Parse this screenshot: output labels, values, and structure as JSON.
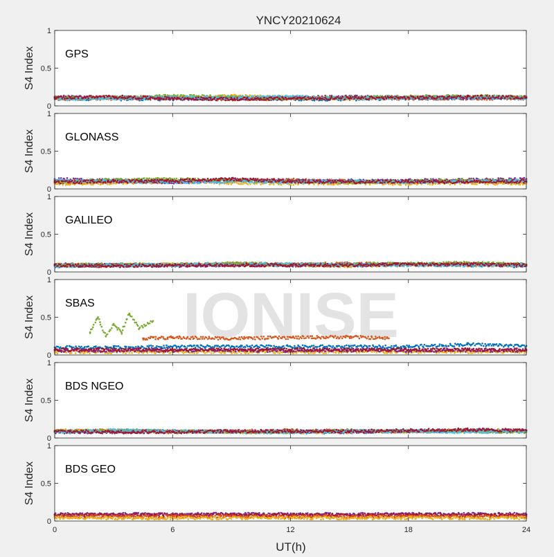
{
  "chart_data": {
    "type": "scatter",
    "title": "YNCY20210624",
    "xlabel": "UT(h)",
    "ylabel": "S4 Index",
    "xlim": [
      0,
      24
    ],
    "ylim": [
      0,
      1
    ],
    "x_ticks": [
      0,
      6,
      12,
      18,
      24
    ],
    "y_ticks": [
      0,
      0.5,
      1
    ],
    "y_tick_labels": [
      "0",
      "0.5",
      "1"
    ],
    "grid": false,
    "watermark": "IONISE",
    "watermark_panel": "SBAS",
    "series_colors": [
      "#0072bd",
      "#d95319",
      "#edb120",
      "#7e2f8e",
      "#77ac30",
      "#4dbeee",
      "#a2142f"
    ],
    "panels": [
      {
        "label": "GPS",
        "series": [
          {
            "color": "#0072bd",
            "x": [
              0,
              3,
              6,
              9,
              12,
              15,
              18,
              21,
              24
            ],
            "y": [
              0.1,
              0.09,
              0.09,
              0.1,
              0.09,
              0.09,
              0.1,
              0.1,
              0.11
            ]
          },
          {
            "color": "#d95319",
            "x": [
              0,
              3,
              6,
              9,
              12,
              15,
              18,
              21,
              24
            ],
            "y": [
              0.09,
              0.1,
              0.1,
              0.09,
              0.1,
              0.11,
              0.1,
              0.1,
              0.1
            ]
          },
          {
            "color": "#edb120",
            "x": [
              0,
              3,
              6,
              9,
              12,
              15,
              18,
              21,
              24
            ],
            "y": [
              0.11,
              0.1,
              0.12,
              0.13,
              0.11,
              0.1,
              0.11,
              0.12,
              0.11
            ]
          },
          {
            "color": "#7e2f8e",
            "x": [
              0,
              3,
              6,
              9,
              12,
              15,
              18,
              21,
              24
            ],
            "y": [
              0.12,
              0.11,
              0.1,
              0.1,
              0.11,
              0.12,
              0.11,
              0.11,
              0.12
            ]
          },
          {
            "color": "#77ac30",
            "x": [
              0,
              3,
              6,
              9,
              12,
              15,
              18,
              21,
              24
            ],
            "y": [
              0.1,
              0.11,
              0.13,
              0.12,
              0.1,
              0.11,
              0.12,
              0.13,
              0.12
            ]
          },
          {
            "color": "#4dbeee",
            "x": [
              0,
              3,
              6,
              9,
              12,
              15,
              18,
              21,
              24
            ],
            "y": [
              0.09,
              0.1,
              0.11,
              0.11,
              0.12,
              0.1,
              0.11,
              0.11,
              0.1
            ]
          },
          {
            "color": "#a2142f",
            "x": [
              0,
              3,
              6,
              9,
              12,
              15,
              18,
              21,
              24
            ],
            "y": [
              0.11,
              0.12,
              0.1,
              0.09,
              0.1,
              0.1,
              0.11,
              0.12,
              0.11
            ]
          }
        ]
      },
      {
        "label": "GLONASS",
        "series": [
          {
            "color": "#0072bd",
            "x": [
              0,
              3,
              6,
              9,
              12,
              15,
              18,
              21,
              24
            ],
            "y": [
              0.09,
              0.1,
              0.09,
              0.1,
              0.1,
              0.11,
              0.1,
              0.1,
              0.09
            ]
          },
          {
            "color": "#d95319",
            "x": [
              0,
              3,
              6,
              9,
              12,
              15,
              18,
              21,
              24
            ],
            "y": [
              0.08,
              0.09,
              0.1,
              0.11,
              0.12,
              0.1,
              0.09,
              0.1,
              0.1
            ]
          },
          {
            "color": "#edb120",
            "x": [
              0,
              3,
              6,
              9,
              12,
              15,
              18,
              21,
              24
            ],
            "y": [
              0.07,
              0.08,
              0.09,
              0.08,
              0.07,
              0.08,
              0.07,
              0.08,
              0.07
            ]
          },
          {
            "color": "#7e2f8e",
            "x": [
              0,
              3,
              6,
              9,
              12,
              15,
              18,
              21,
              24
            ],
            "y": [
              0.13,
              0.11,
              0.09,
              0.12,
              0.11,
              0.1,
              0.11,
              0.12,
              0.13
            ]
          },
          {
            "color": "#77ac30",
            "x": [
              0,
              3,
              6,
              9,
              12,
              15,
              18,
              21,
              24
            ],
            "y": [
              0.1,
              0.12,
              0.13,
              0.11,
              0.1,
              0.09,
              0.1,
              0.11,
              0.1
            ]
          },
          {
            "color": "#4dbeee",
            "x": [
              0,
              3,
              6,
              9,
              12,
              15,
              18,
              21,
              24
            ],
            "y": [
              0.11,
              0.1,
              0.09,
              0.1,
              0.09,
              0.1,
              0.09,
              0.1,
              0.11
            ]
          },
          {
            "color": "#a2142f",
            "x": [
              0,
              3,
              6,
              9,
              12,
              15,
              18,
              21,
              24
            ],
            "y": [
              0.09,
              0.1,
              0.11,
              0.13,
              0.1,
              0.09,
              0.1,
              0.09,
              0.1
            ]
          }
        ]
      },
      {
        "label": "GALILEO",
        "series": [
          {
            "color": "#0072bd",
            "x": [
              0,
              3,
              6,
              9,
              12,
              15,
              18,
              21,
              24
            ],
            "y": [
              0.08,
              0.09,
              0.09,
              0.1,
              0.09,
              0.09,
              0.1,
              0.09,
              0.08
            ]
          },
          {
            "color": "#d95319",
            "x": [
              0,
              3,
              6,
              9,
              12,
              15,
              18,
              21,
              24
            ],
            "y": [
              0.09,
              0.08,
              0.1,
              0.11,
              0.1,
              0.11,
              0.1,
              0.11,
              0.09
            ]
          },
          {
            "color": "#edb120",
            "x": [
              0,
              3,
              6,
              9,
              12,
              15,
              18,
              21,
              24
            ],
            "y": [
              0.1,
              0.09,
              0.1,
              0.09,
              0.09,
              0.08,
              0.09,
              0.09,
              0.09
            ]
          },
          {
            "color": "#7e2f8e",
            "x": [
              0,
              3,
              6,
              9,
              12,
              15,
              18,
              21,
              24
            ],
            "y": [
              0.1,
              0.09,
              0.08,
              0.09,
              0.09,
              0.09,
              0.1,
              0.1,
              0.1
            ]
          },
          {
            "color": "#77ac30",
            "x": [
              0,
              3,
              6,
              9,
              12,
              15,
              18,
              21,
              24
            ],
            "y": [
              0.09,
              0.1,
              0.1,
              0.11,
              0.1,
              0.1,
              0.11,
              0.12,
              0.1
            ]
          },
          {
            "color": "#4dbeee",
            "x": [
              0,
              3,
              6,
              9,
              12,
              15,
              18,
              21,
              24
            ],
            "y": [
              0.08,
              0.09,
              0.09,
              0.1,
              0.1,
              0.1,
              0.09,
              0.09,
              0.09
            ]
          },
          {
            "color": "#a2142f",
            "x": [
              0,
              3,
              6,
              9,
              12,
              15,
              18,
              21,
              24
            ],
            "y": [
              0.09,
              0.08,
              0.09,
              0.09,
              0.09,
              0.09,
              0.1,
              0.1,
              0.09
            ]
          }
        ]
      },
      {
        "label": "SBAS",
        "series": [
          {
            "color": "#0072bd",
            "x": [
              0,
              3,
              6,
              9,
              12,
              15,
              18,
              21,
              24
            ],
            "y": [
              0.1,
              0.1,
              0.11,
              0.11,
              0.11,
              0.11,
              0.11,
              0.14,
              0.12
            ]
          },
          {
            "color": "#d95319",
            "x": [
              4.5,
              6,
              9,
              12,
              15,
              17
            ],
            "y": [
              0.22,
              0.23,
              0.22,
              0.23,
              0.24,
              0.22
            ]
          },
          {
            "color": "#77ac30",
            "x": [
              1.8,
              2.2,
              2.6,
              3.0,
              3.4,
              3.8,
              4.3,
              5.0
            ],
            "y": [
              0.3,
              0.5,
              0.25,
              0.4,
              0.3,
              0.55,
              0.35,
              0.45
            ]
          },
          {
            "color": "#edb120",
            "x": [
              0,
              6,
              12,
              18,
              24
            ],
            "y": [
              0.04,
              0.04,
              0.04,
              0.04,
              0.04
            ]
          },
          {
            "color": "#7e2f8e",
            "x": [
              0,
              6,
              12,
              18,
              24
            ],
            "y": [
              0.06,
              0.06,
              0.06,
              0.06,
              0.06
            ]
          },
          {
            "color": "#a2142f",
            "x": [
              0,
              6,
              12,
              18,
              24
            ],
            "y": [
              0.07,
              0.07,
              0.07,
              0.07,
              0.07
            ]
          }
        ]
      },
      {
        "label": "BDS NGEO",
        "series": [
          {
            "color": "#0072bd",
            "x": [
              0,
              3,
              6,
              9,
              12,
              15,
              18,
              21,
              24
            ],
            "y": [
              0.09,
              0.09,
              0.09,
              0.08,
              0.08,
              0.08,
              0.09,
              0.09,
              0.09
            ]
          },
          {
            "color": "#d95319",
            "x": [
              0,
              3,
              6,
              9,
              12,
              15,
              18,
              21,
              24
            ],
            "y": [
              0.09,
              0.1,
              0.08,
              0.09,
              0.1,
              0.09,
              0.09,
              0.1,
              0.1
            ]
          },
          {
            "color": "#edb120",
            "x": [
              0,
              3,
              6,
              9,
              12,
              15,
              18,
              21,
              24
            ],
            "y": [
              0.1,
              0.09,
              0.09,
              0.08,
              0.08,
              0.08,
              0.09,
              0.09,
              0.09
            ]
          },
          {
            "color": "#7e2f8e",
            "x": [
              0,
              3,
              6,
              9,
              12,
              15,
              18,
              21,
              24
            ],
            "y": [
              0.08,
              0.08,
              0.09,
              0.09,
              0.09,
              0.08,
              0.09,
              0.1,
              0.1
            ]
          },
          {
            "color": "#77ac30",
            "x": [
              0,
              3,
              6,
              9,
              12,
              15,
              18,
              21,
              24
            ],
            "y": [
              0.09,
              0.1,
              0.09,
              0.08,
              0.08,
              0.1,
              0.09,
              0.09,
              0.08
            ]
          },
          {
            "color": "#4dbeee",
            "x": [
              0,
              3,
              6,
              9,
              12,
              15,
              18,
              21,
              24
            ],
            "y": [
              0.08,
              0.1,
              0.09,
              0.08,
              0.08,
              0.09,
              0.09,
              0.08,
              0.09
            ]
          },
          {
            "color": "#a2142f",
            "x": [
              0,
              3,
              6,
              9,
              12,
              15,
              18,
              21,
              24
            ],
            "y": [
              0.09,
              0.08,
              0.08,
              0.09,
              0.09,
              0.09,
              0.1,
              0.11,
              0.1
            ]
          }
        ]
      },
      {
        "label": "BDS GEO",
        "series": [
          {
            "color": "#7e2f8e",
            "x": [
              0,
              6,
              12,
              18,
              24
            ],
            "y": [
              0.09,
              0.09,
              0.09,
              0.09,
              0.09
            ]
          },
          {
            "color": "#a2142f",
            "x": [
              0,
              6,
              12,
              18,
              24
            ],
            "y": [
              0.08,
              0.08,
              0.08,
              0.08,
              0.08
            ]
          },
          {
            "color": "#d95319",
            "x": [
              0,
              6,
              12,
              18,
              24
            ],
            "y": [
              0.06,
              0.06,
              0.06,
              0.06,
              0.06
            ]
          },
          {
            "color": "#edb120",
            "x": [
              0,
              6,
              12,
              18,
              24
            ],
            "y": [
              0.04,
              0.04,
              0.04,
              0.04,
              0.04
            ]
          }
        ]
      }
    ]
  }
}
